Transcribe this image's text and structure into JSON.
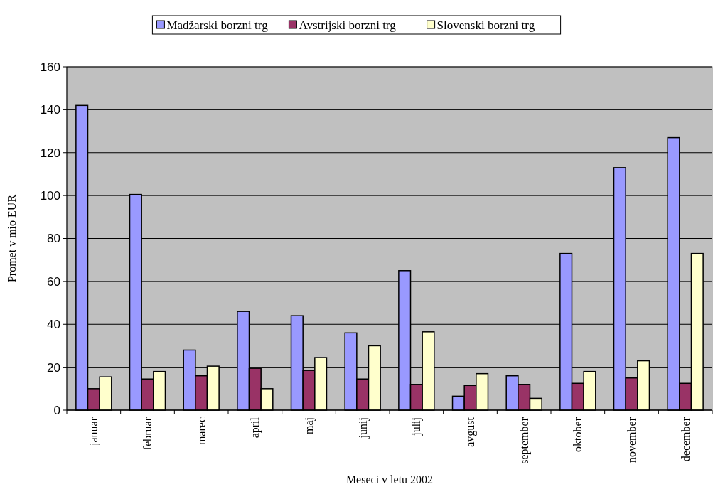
{
  "chart_data": {
    "type": "bar",
    "xlabel": "Meseci v letu 2002",
    "ylabel": "Promet v mio EUR",
    "categories": [
      "januar",
      "februar",
      "marec",
      "april",
      "maj",
      "junij",
      "julij",
      "avgust",
      "september",
      "oktober",
      "november",
      "december"
    ],
    "series": [
      {
        "name": "Madžarski borzni trg",
        "color": "#9999ff",
        "values": [
          142,
          100.5,
          28,
          46,
          44,
          36,
          65,
          6.5,
          16,
          73,
          113,
          127
        ]
      },
      {
        "name": "Avstrijski borzni trg",
        "color": "#993366",
        "values": [
          10,
          14.5,
          16,
          19.5,
          18.5,
          14.5,
          12,
          11.5,
          12,
          12.5,
          15,
          12.5
        ]
      },
      {
        "name": "Slovenski borzni trg",
        "color": "#ffffcc",
        "values": [
          15.5,
          18,
          20.5,
          10,
          24.5,
          30,
          36.5,
          17,
          5.5,
          18,
          23,
          73
        ]
      }
    ],
    "ylim": [
      0,
      160
    ],
    "yticks": [
      0,
      20,
      40,
      60,
      80,
      100,
      120,
      140,
      160
    ],
    "grid": "y",
    "legend": "top"
  }
}
